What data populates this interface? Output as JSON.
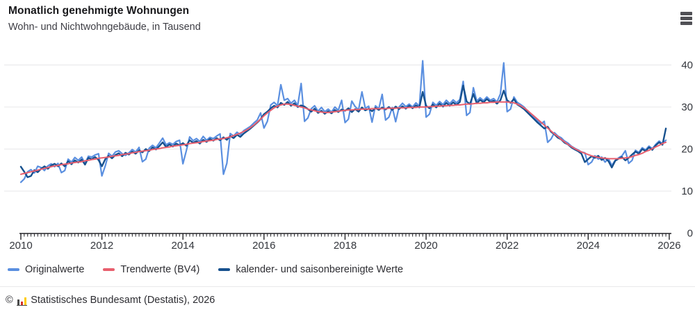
{
  "header": {
    "title": "Monatlich genehmigte Wohnungen",
    "subtitle": "Wohn- und Nichtwohngebäude, in Tausend"
  },
  "menu": {
    "icon": "hamburger-menu-icon"
  },
  "chart_data": {
    "type": "line",
    "title": "Monatlich genehmigte Wohnungen",
    "subtitle": "Wohn- und Nichtwohngebäude, in Tausend",
    "unit": "Tausend",
    "x_monthly_start": "2010-01",
    "x_monthly_end": "2025-12",
    "x_tick_labels": [
      "2010",
      "2012",
      "2014",
      "2016",
      "2018",
      "2020",
      "2022",
      "2024",
      "2026"
    ],
    "y_tick_labels": [
      "0",
      "10",
      "20",
      "30",
      "40"
    ],
    "ylim": [
      0,
      44
    ],
    "grid": "horizontal-only",
    "grid_color": "#e7e7e9",
    "axis_color": "#222226",
    "legend_position": "bottom-left",
    "series": [
      {
        "id": "originalwerte",
        "name": "Originalwerte",
        "color": "#5a8fe0",
        "stroke_width": 2.2,
        "values": [
          12.1,
          12.9,
          14.6,
          15.1,
          14.3,
          15.9,
          15.6,
          14.9,
          16.0,
          16.5,
          15.8,
          16.6,
          14.4,
          14.9,
          17.6,
          16.9,
          18.0,
          17.3,
          18.1,
          16.6,
          18.3,
          18.1,
          18.6,
          18.9,
          13.6,
          16.0,
          19.0,
          18.3,
          19.3,
          19.6,
          18.9,
          18.5,
          19.1,
          19.9,
          19.3,
          20.4,
          17.0,
          17.6,
          20.2,
          20.9,
          20.3,
          21.4,
          22.6,
          21.0,
          21.5,
          21.1,
          21.8,
          22.1,
          16.5,
          19.6,
          22.9,
          22.0,
          22.5,
          21.8,
          23.0,
          22.1,
          22.8,
          22.5,
          23.1,
          23.6,
          14.0,
          16.6,
          23.7,
          23.1,
          24.0,
          23.4,
          24.4,
          24.9,
          25.4,
          26.2,
          26.9,
          28.6,
          25.0,
          26.6,
          30.5,
          31.1,
          30.3,
          35.3,
          31.6,
          32.0,
          30.9,
          31.6,
          30.4,
          35.6,
          26.6,
          27.4,
          29.6,
          30.3,
          29.0,
          29.9,
          28.9,
          29.5,
          28.8,
          30.0,
          29.2,
          31.6,
          26.3,
          27.1,
          31.4,
          30.1,
          29.3,
          33.6,
          29.7,
          30.2,
          26.4,
          30.3,
          29.6,
          33.0,
          26.9,
          27.6,
          29.9,
          26.5,
          30.0,
          30.9,
          30.1,
          30.7,
          30.0,
          31.0,
          30.2,
          41.0,
          27.6,
          28.3,
          31.1,
          30.4,
          31.3,
          30.6,
          31.6,
          30.8,
          31.7,
          31.0,
          31.8,
          36.1,
          28.0,
          28.7,
          34.6,
          31.4,
          32.2,
          31.5,
          32.4,
          31.6,
          32.0,
          31.2,
          33.1,
          40.5,
          28.9,
          29.5,
          32.4,
          31.1,
          30.6,
          30.0,
          29.1,
          28.3,
          27.5,
          26.7,
          26.0,
          26.6,
          21.6,
          22.4,
          23.9,
          23.1,
          22.7,
          21.9,
          21.4,
          20.7,
          20.2,
          19.8,
          19.3,
          19.1,
          16.3,
          16.9,
          18.4,
          17.6,
          18.1,
          16.9,
          17.7,
          16.1,
          17.3,
          17.9,
          18.4,
          19.6,
          16.6,
          17.3,
          19.7,
          19.2,
          20.3,
          19.8,
          20.7,
          20.1,
          21.1,
          21.9,
          21.3,
          22.1
        ]
      },
      {
        "id": "trendwerte-bv4",
        "name": "Trendwerte (BV4)",
        "color": "#e85f6e",
        "stroke_width": 2,
        "values": [
          14.0,
          14.2,
          14.4,
          14.6,
          14.8,
          15.0,
          15.2,
          15.4,
          15.6,
          15.8,
          16.0,
          16.1,
          16.3,
          16.4,
          16.5,
          16.7,
          16.8,
          16.9,
          17.0,
          17.2,
          17.3,
          17.5,
          17.6,
          17.8,
          17.9,
          18.0,
          18.1,
          18.3,
          18.4,
          18.5,
          18.7,
          18.8,
          18.9,
          19.1,
          19.2,
          19.4,
          19.5,
          19.6,
          19.7,
          19.9,
          20.0,
          20.1,
          20.3,
          20.4,
          20.5,
          20.7,
          20.8,
          20.9,
          21.0,
          21.1,
          21.3,
          21.4,
          21.5,
          21.6,
          21.8,
          21.9,
          22.0,
          22.1,
          22.3,
          22.4,
          22.5,
          22.7,
          22.9,
          23.2,
          23.5,
          23.8,
          24.2,
          24.6,
          25.1,
          25.7,
          26.4,
          27.1,
          27.9,
          28.6,
          29.2,
          29.8,
          30.2,
          30.5,
          30.7,
          30.7,
          30.6,
          30.4,
          30.2,
          30.0,
          29.8,
          29.5,
          29.3,
          29.1,
          28.9,
          28.8,
          28.7,
          28.7,
          28.8,
          28.9,
          29.0,
          29.1,
          29.2,
          29.3,
          29.3,
          29.4,
          29.4,
          29.5,
          29.5,
          29.5,
          29.6,
          29.6,
          29.6,
          29.6,
          29.6,
          29.7,
          29.7,
          29.7,
          29.8,
          29.8,
          29.8,
          29.9,
          29.9,
          29.9,
          30.0,
          30.0,
          30.0,
          30.1,
          30.1,
          30.2,
          30.2,
          30.3,
          30.3,
          30.4,
          30.4,
          30.5,
          30.5,
          30.6,
          30.7,
          30.7,
          30.8,
          30.9,
          30.9,
          31.0,
          31.0,
          31.1,
          31.1,
          31.2,
          31.2,
          31.2,
          31.2,
          31.1,
          31.0,
          30.7,
          30.3,
          29.8,
          29.2,
          28.5,
          27.8,
          27.1,
          26.4,
          25.7,
          25.0,
          24.3,
          23.6,
          23.0,
          22.3,
          21.7,
          21.1,
          20.6,
          20.1,
          19.7,
          19.3,
          19.0,
          18.7,
          18.4,
          18.2,
          18.0,
          17.9,
          17.8,
          17.7,
          17.7,
          17.7,
          17.7,
          17.8,
          17.9,
          18.0,
          18.2,
          18.5,
          18.7,
          19.0,
          19.4,
          19.7,
          20.1,
          20.5,
          20.9,
          21.3,
          21.6
        ]
      },
      {
        "id": "saisonbereinigte-werte",
        "name": "kalender- und saisonbereinigte Werte",
        "color": "#17518e",
        "stroke_width": 2.4,
        "values": [
          15.8,
          14.6,
          13.3,
          13.6,
          15.0,
          14.5,
          15.3,
          15.9,
          15.3,
          16.1,
          16.5,
          15.9,
          16.6,
          15.9,
          17.1,
          16.4,
          17.3,
          16.8,
          17.5,
          16.3,
          17.9,
          17.6,
          18.1,
          17.4,
          15.9,
          17.6,
          18.4,
          17.8,
          18.6,
          19.0,
          18.3,
          19.1,
          18.7,
          19.4,
          18.9,
          19.7,
          19.2,
          20.0,
          19.5,
          20.4,
          19.9,
          20.7,
          21.6,
          20.5,
          21.1,
          20.6,
          21.3,
          20.9,
          21.4,
          20.8,
          22.1,
          21.5,
          21.9,
          21.3,
          22.2,
          21.7,
          22.4,
          22.0,
          22.6,
          22.1,
          22.8,
          22.2,
          23.1,
          22.6,
          23.4,
          22.9,
          23.7,
          24.3,
          24.9,
          25.6,
          26.3,
          27.1,
          28.3,
          28.9,
          29.7,
          30.3,
          29.9,
          31.0,
          30.5,
          31.2,
          30.3,
          30.9,
          30.0,
          30.4,
          30.1,
          29.5,
          28.9,
          29.6,
          28.6,
          29.1,
          28.4,
          29.0,
          28.5,
          29.3,
          28.8,
          29.4,
          29.1,
          29.7,
          28.8,
          29.5,
          28.9,
          29.9,
          29.2,
          29.6,
          29.0,
          29.8,
          29.3,
          29.9,
          29.4,
          30.0,
          29.3,
          30.1,
          29.5,
          30.2,
          29.6,
          30.3,
          29.7,
          30.4,
          29.9,
          33.6,
          30.3,
          29.7,
          30.6,
          29.9,
          30.8,
          30.1,
          31.0,
          30.3,
          31.1,
          30.5,
          31.2,
          35.1,
          31.3,
          30.7,
          33.1,
          30.9,
          31.7,
          31.1,
          31.9,
          31.2,
          31.5,
          30.8,
          31.6,
          33.9,
          31.6,
          31.0,
          31.9,
          30.6,
          30.1,
          29.5,
          28.7,
          27.9,
          27.1,
          26.3,
          25.6,
          24.9,
          25.3,
          24.1,
          23.5,
          22.7,
          22.3,
          21.5,
          21.1,
          20.4,
          19.9,
          19.5,
          18.9,
          16.9,
          17.6,
          18.3,
          17.9,
          18.4,
          17.4,
          17.9,
          17.1,
          15.6,
          17.2,
          17.7,
          18.1,
          17.3,
          17.9,
          18.7,
          19.4,
          18.9,
          20.0,
          19.5,
          20.4,
          19.8,
          20.9,
          21.6,
          21.0,
          24.9
        ]
      }
    ]
  },
  "footer": {
    "copyright": "©",
    "logo": "destatis-bars-icon",
    "text": "Statistisches Bundesamt (Destatis), 2026"
  }
}
